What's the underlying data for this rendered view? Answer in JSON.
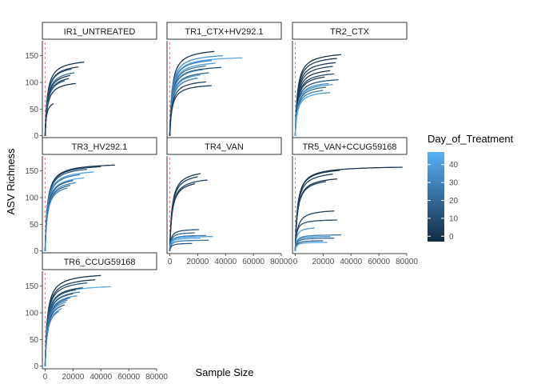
{
  "chart_data": {
    "type": "line",
    "title": "",
    "xlabel": "Sample Size",
    "ylabel": "ASV Richness",
    "xlim": [
      -2000,
      80000
    ],
    "ylim": [
      -5,
      178
    ],
    "x_ticks": [
      0,
      20000,
      40000,
      60000,
      80000
    ],
    "x_tick_labels": [
      "0",
      "20000",
      "40000",
      "60000",
      "80000"
    ],
    "y_ticks": [
      0,
      50,
      100,
      150
    ],
    "y_tick_labels": [
      "0",
      "50",
      "100",
      "150"
    ],
    "reference_line": {
      "x": 0,
      "style": "dashed",
      "color": "#e8636b"
    },
    "grid": false,
    "legend": {
      "title": "Day_of_Treatment",
      "position": "right",
      "type": "colorbar",
      "range": [
        -3,
        47
      ],
      "ticks": [
        0,
        10,
        20,
        30,
        40
      ],
      "tick_labels": [
        "0",
        "10",
        "20",
        "30",
        "40"
      ],
      "color_low": "#132b43",
      "color_high": "#56b1f7"
    },
    "facets": [
      {
        "name": "IR1_UNTREATED",
        "curves": [
          {
            "day": 0,
            "n_max": 28000,
            "s_max": 138
          },
          {
            "day": 5,
            "n_max": 24000,
            "s_max": 129
          },
          {
            "day": 12,
            "n_max": 19000,
            "s_max": 125
          },
          {
            "day": 20,
            "n_max": 21000,
            "s_max": 118
          },
          {
            "day": 2,
            "n_max": 18000,
            "s_max": 113
          },
          {
            "day": 8,
            "n_max": 17000,
            "s_max": 107
          },
          {
            "day": 1,
            "n_max": 22000,
            "s_max": 98
          },
          {
            "day": 15,
            "n_max": 14000,
            "s_max": 103
          },
          {
            "day": 3,
            "n_max": 6000,
            "s_max": 60
          }
        ]
      },
      {
        "name": "TR1_CTX+HV292.1",
        "curves": [
          {
            "day": 0,
            "n_max": 32000,
            "s_max": 158
          },
          {
            "day": 44,
            "n_max": 52000,
            "s_max": 146
          },
          {
            "day": 35,
            "n_max": 38000,
            "s_max": 150
          },
          {
            "day": 28,
            "n_max": 30000,
            "s_max": 141
          },
          {
            "day": 40,
            "n_max": 33000,
            "s_max": 136
          },
          {
            "day": 22,
            "n_max": 26000,
            "s_max": 131
          },
          {
            "day": 10,
            "n_max": 37000,
            "s_max": 128
          },
          {
            "day": 30,
            "n_max": 24000,
            "s_max": 124
          },
          {
            "day": 18,
            "n_max": 28000,
            "s_max": 118
          },
          {
            "day": 38,
            "n_max": 22000,
            "s_max": 114
          },
          {
            "day": 25,
            "n_max": 20000,
            "s_max": 108
          },
          {
            "day": 5,
            "n_max": 26000,
            "s_max": 101
          },
          {
            "day": 2,
            "n_max": 30000,
            "s_max": 94
          }
        ]
      },
      {
        "name": "TR2_CTX",
        "curves": [
          {
            "day": 0,
            "n_max": 33000,
            "s_max": 152
          },
          {
            "day": 2,
            "n_max": 30000,
            "s_max": 145
          },
          {
            "day": 4,
            "n_max": 29000,
            "s_max": 137
          },
          {
            "day": 6,
            "n_max": 27000,
            "s_max": 130
          },
          {
            "day": 1,
            "n_max": 25000,
            "s_max": 122
          },
          {
            "day": 8,
            "n_max": 28000,
            "s_max": 116
          },
          {
            "day": 3,
            "n_max": 21000,
            "s_max": 110
          },
          {
            "day": 12,
            "n_max": 31000,
            "s_max": 105
          },
          {
            "day": 35,
            "n_max": 24000,
            "s_max": 98
          },
          {
            "day": 42,
            "n_max": 27000,
            "s_max": 96
          },
          {
            "day": 20,
            "n_max": 22000,
            "s_max": 91
          },
          {
            "day": 28,
            "n_max": 20000,
            "s_max": 85
          },
          {
            "day": 38,
            "n_max": 25000,
            "s_max": 81
          },
          {
            "day": 45,
            "n_max": 18000,
            "s_max": 79
          }
        ]
      },
      {
        "name": "TR3_HV292.1",
        "curves": [
          {
            "day": 0,
            "n_max": 50000,
            "s_max": 161
          },
          {
            "day": 5,
            "n_max": 40000,
            "s_max": 158
          },
          {
            "day": 15,
            "n_max": 30000,
            "s_max": 153
          },
          {
            "day": 40,
            "n_max": 35000,
            "s_max": 148
          },
          {
            "day": 25,
            "n_max": 25000,
            "s_max": 143
          },
          {
            "day": 44,
            "n_max": 28000,
            "s_max": 137
          },
          {
            "day": 10,
            "n_max": 20000,
            "s_max": 132
          },
          {
            "day": 33,
            "n_max": 22000,
            "s_max": 128
          },
          {
            "day": 20,
            "n_max": 18000,
            "s_max": 123
          },
          {
            "day": 30,
            "n_max": 16000,
            "s_max": 118
          }
        ]
      },
      {
        "name": "TR4_VAN",
        "curves": [
          {
            "day": 0,
            "n_max": 22000,
            "s_max": 145
          },
          {
            "day": 3,
            "n_max": 20000,
            "s_max": 139
          },
          {
            "day": 6,
            "n_max": 27000,
            "s_max": 133
          },
          {
            "day": 1,
            "n_max": 18000,
            "s_max": 126
          },
          {
            "day": 10,
            "n_max": 21000,
            "s_max": 40
          },
          {
            "day": 20,
            "n_max": 18000,
            "s_max": 34
          },
          {
            "day": 30,
            "n_max": 26000,
            "s_max": 29
          },
          {
            "day": 40,
            "n_max": 31000,
            "s_max": 27
          },
          {
            "day": 45,
            "n_max": 22000,
            "s_max": 24
          },
          {
            "day": 25,
            "n_max": 28000,
            "s_max": 20
          },
          {
            "day": 15,
            "n_max": 16000,
            "s_max": 14
          }
        ]
      },
      {
        "name": "TR5_VAN+CCUG59168",
        "curves": [
          {
            "day": 0,
            "n_max": 77000,
            "s_max": 157
          },
          {
            "day": 2,
            "n_max": 32000,
            "s_max": 151
          },
          {
            "day": 4,
            "n_max": 27000,
            "s_max": 144
          },
          {
            "day": 1,
            "n_max": 30000,
            "s_max": 135
          },
          {
            "day": 6,
            "n_max": 22000,
            "s_max": 130
          },
          {
            "day": 5,
            "n_max": 28000,
            "s_max": 75
          },
          {
            "day": 8,
            "n_max": 30000,
            "s_max": 58
          },
          {
            "day": 40,
            "n_max": 14000,
            "s_max": 43
          },
          {
            "day": 28,
            "n_max": 33000,
            "s_max": 30
          },
          {
            "day": 35,
            "n_max": 25000,
            "s_max": 27
          },
          {
            "day": 22,
            "n_max": 28000,
            "s_max": 24
          },
          {
            "day": 15,
            "n_max": 20000,
            "s_max": 19
          },
          {
            "day": 45,
            "n_max": 23000,
            "s_max": 16
          }
        ]
      },
      {
        "name": "TR6_CCUG59168",
        "curves": [
          {
            "day": 0,
            "n_max": 40000,
            "s_max": 170
          },
          {
            "day": 3,
            "n_max": 36000,
            "s_max": 162
          },
          {
            "day": 10,
            "n_max": 30000,
            "s_max": 156
          },
          {
            "day": 44,
            "n_max": 47000,
            "s_max": 149
          },
          {
            "day": 5,
            "n_max": 27000,
            "s_max": 147
          },
          {
            "day": 15,
            "n_max": 22000,
            "s_max": 143
          },
          {
            "day": 30,
            "n_max": 25000,
            "s_max": 139
          },
          {
            "day": 8,
            "n_max": 20000,
            "s_max": 136
          },
          {
            "day": 38,
            "n_max": 23000,
            "s_max": 132
          },
          {
            "day": 20,
            "n_max": 18000,
            "s_max": 128
          },
          {
            "day": 25,
            "n_max": 16000,
            "s_max": 124
          },
          {
            "day": 35,
            "n_max": 15000,
            "s_max": 120
          },
          {
            "day": 12,
            "n_max": 14000,
            "s_max": 115
          },
          {
            "day": 42,
            "n_max": 12000,
            "s_max": 108
          },
          {
            "day": 28,
            "n_max": 10000,
            "s_max": 103
          }
        ]
      }
    ]
  }
}
